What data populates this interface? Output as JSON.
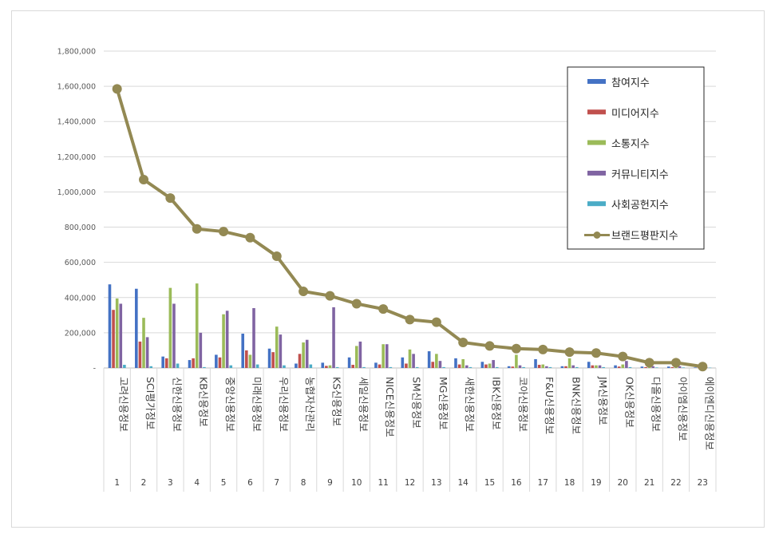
{
  "chart_data": {
    "type": "bar",
    "title": "",
    "ylim": [
      0,
      1800000
    ],
    "yticks": [
      "-",
      "200,000",
      "400,000",
      "600,000",
      "800,000",
      "1,000,000",
      "1,200,000",
      "1,400,000",
      "1,600,000",
      "1,800,000"
    ],
    "categories": [
      "고려신용정보",
      "SCI평가정보",
      "신한신용정보",
      "KB신용정보",
      "중앙신용정보",
      "미래신용정보",
      "우리신용정보",
      "농협자산관리",
      "KS신용정보",
      "세일신용정보",
      "NICE신용정보",
      "SM신용정보",
      "MG신용정보",
      "새한신용정보",
      "IBK신용정보",
      "코아신용정보",
      "F&U신용정보",
      "BNK신용정보",
      "JM신용정보",
      "OK신용정보",
      "다올신용정보",
      "아이엠신용정보",
      "에이엔디신용정보"
    ],
    "ranks": [
      "1",
      "2",
      "3",
      "4",
      "5",
      "6",
      "7",
      "8",
      "9",
      "10",
      "11",
      "12",
      "13",
      "14",
      "15",
      "16",
      "17",
      "18",
      "19",
      "20",
      "21",
      "22",
      "23"
    ],
    "series": [
      {
        "name": "참여지수",
        "color": "#4472c4",
        "kind": "bar",
        "values": [
          475000,
          450000,
          65000,
          45000,
          75000,
          195000,
          110000,
          25000,
          30000,
          60000,
          30000,
          60000,
          95000,
          55000,
          35000,
          10000,
          50000,
          10000,
          35000,
          15000,
          8000,
          8000,
          3000
        ]
      },
      {
        "name": "미디어지수",
        "color": "#c0504d",
        "kind": "bar",
        "values": [
          330000,
          150000,
          55000,
          55000,
          60000,
          100000,
          90000,
          80000,
          12000,
          18000,
          20000,
          25000,
          35000,
          20000,
          20000,
          8000,
          18000,
          10000,
          15000,
          8000,
          5000,
          5000,
          2000
        ]
      },
      {
        "name": "소통지수",
        "color": "#9bbb59",
        "kind": "bar",
        "values": [
          395000,
          285000,
          455000,
          480000,
          305000,
          75000,
          235000,
          145000,
          15000,
          125000,
          135000,
          105000,
          80000,
          50000,
          25000,
          75000,
          20000,
          55000,
          15000,
          20000,
          10000,
          10000,
          4000
        ]
      },
      {
        "name": "커뮤니티지수",
        "color": "#8064a2",
        "kind": "bar",
        "values": [
          365000,
          175000,
          365000,
          200000,
          325000,
          340000,
          190000,
          160000,
          345000,
          150000,
          135000,
          80000,
          40000,
          15000,
          45000,
          15000,
          10000,
          15000,
          15000,
          40000,
          10000,
          10000,
          3000
        ]
      },
      {
        "name": "사회공헌지수",
        "color": "#4bacc6",
        "kind": "bar",
        "values": [
          18000,
          10000,
          25000,
          5000,
          15000,
          20000,
          15000,
          20000,
          5000,
          5000,
          5000,
          5000,
          5000,
          5000,
          5000,
          5000,
          5000,
          5000,
          5000,
          5000,
          3000,
          3000,
          2000
        ]
      },
      {
        "name": "브랜드평판지수",
        "color": "#938953",
        "kind": "line",
        "values": [
          1585000,
          1070000,
          965000,
          790000,
          775000,
          740000,
          635000,
          435000,
          410000,
          365000,
          335000,
          275000,
          260000,
          145000,
          125000,
          110000,
          105000,
          90000,
          85000,
          65000,
          30000,
          30000,
          8000
        ]
      }
    ],
    "legend_position": "top-right",
    "grid": true
  }
}
